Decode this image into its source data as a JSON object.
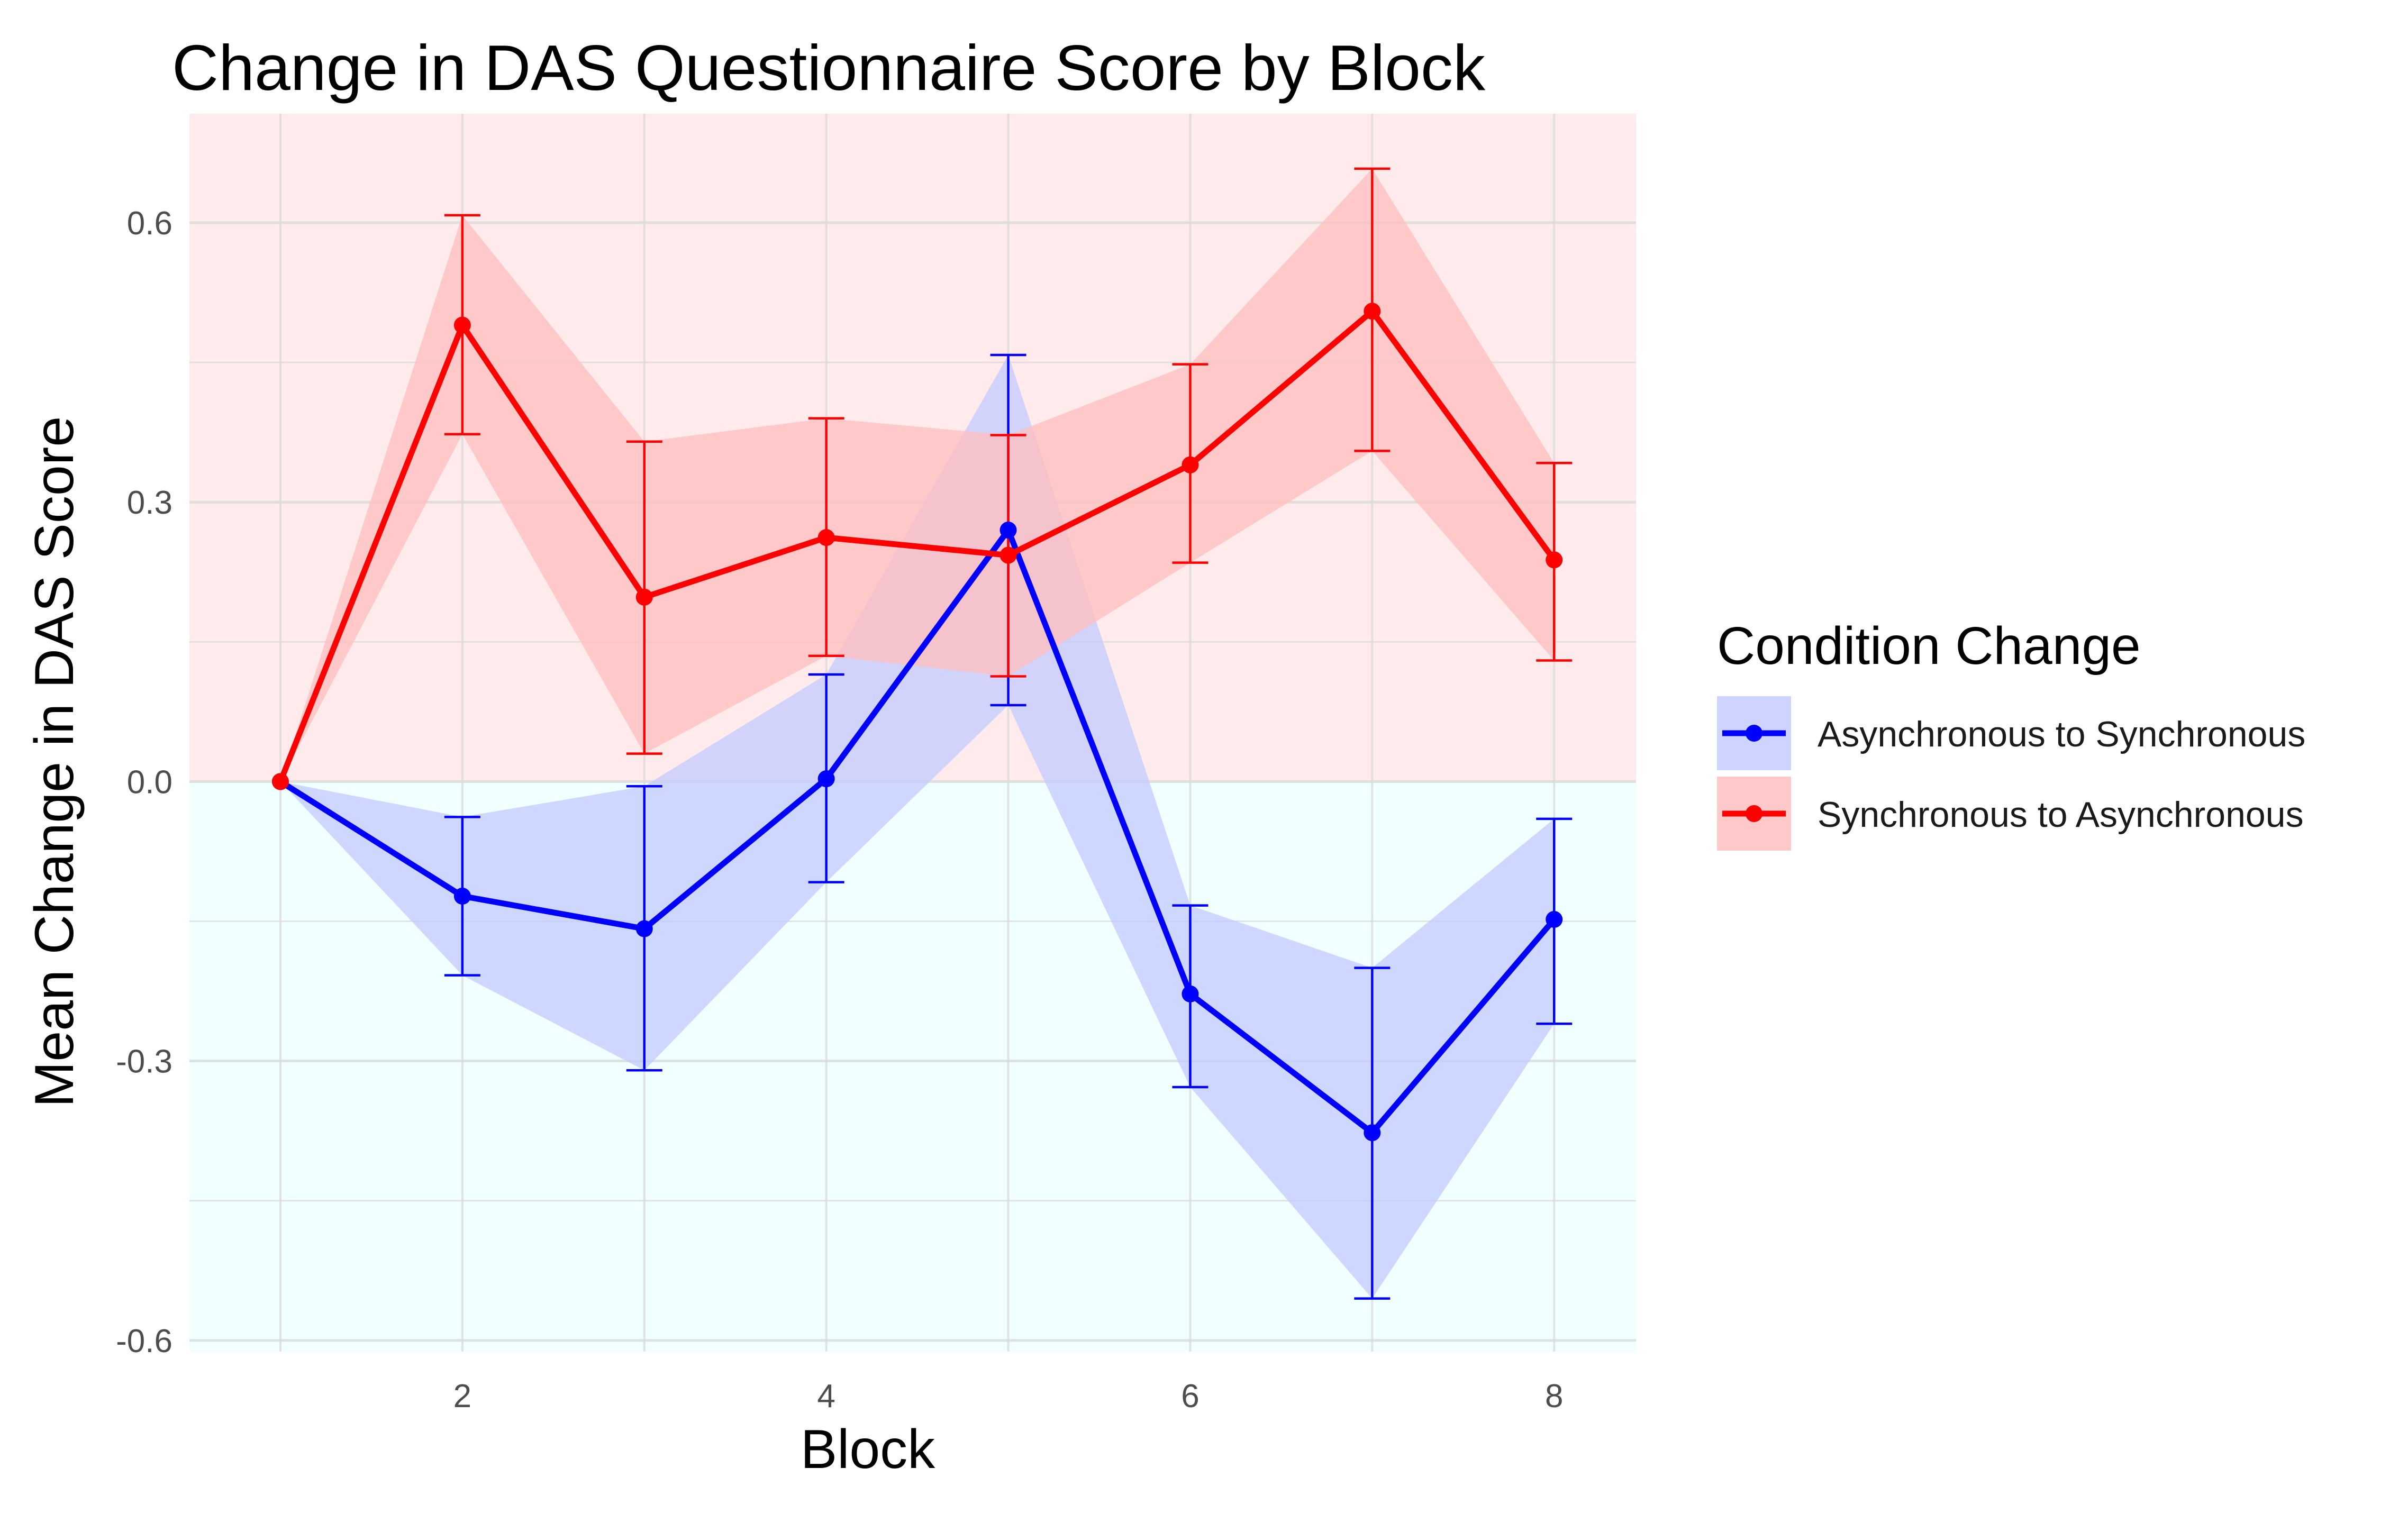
{
  "chart_data": {
    "type": "line",
    "title": "Change in DAS Questionnaire Score by Block",
    "xlabel": "Block",
    "ylabel": "Mean Change in DAS Score",
    "x": [
      1,
      2,
      3,
      4,
      5,
      6,
      7,
      8
    ],
    "x_ticks": [
      "2",
      "4",
      "6",
      "8"
    ],
    "y_ticks": [
      "-0.6",
      "-0.3",
      "0.0",
      "0.3",
      "0.6"
    ],
    "xlim": [
      0.5,
      8.45
    ],
    "ylim": [
      -0.612,
      0.717
    ],
    "grid": true,
    "background_bands": [
      {
        "from": 0,
        "to": 0.717,
        "color": "#FFEBEB"
      },
      {
        "from": -0.612,
        "to": 0,
        "color": "#F0FFFF"
      }
    ],
    "legend": {
      "title": "Condition Change",
      "position": "right"
    },
    "series": [
      {
        "name": "Asynchronous to Synchronous",
        "color": "#0000FF",
        "ribbon_color": "#C4CCFF",
        "values": [
          0.0,
          -0.123,
          -0.158,
          0.003,
          0.27,
          -0.228,
          -0.377,
          -0.148
        ],
        "lower": [
          0.0,
          -0.208,
          -0.31,
          -0.108,
          0.082,
          -0.328,
          -0.555,
          -0.26
        ],
        "upper": [
          0.0,
          -0.038,
          -0.005,
          0.115,
          0.458,
          -0.133,
          -0.2,
          -0.04
        ]
      },
      {
        "name": "Synchronous to Asynchronous",
        "color": "#FF0000",
        "ribbon_color": "#FFBFBF",
        "values": [
          0.0,
          0.49,
          0.198,
          0.262,
          0.243,
          0.34,
          0.505,
          0.238
        ],
        "lower": [
          0.0,
          0.373,
          0.03,
          0.135,
          0.113,
          0.235,
          0.355,
          0.13
        ],
        "upper": [
          0.0,
          0.608,
          0.365,
          0.39,
          0.372,
          0.448,
          0.658,
          0.342
        ]
      }
    ]
  }
}
